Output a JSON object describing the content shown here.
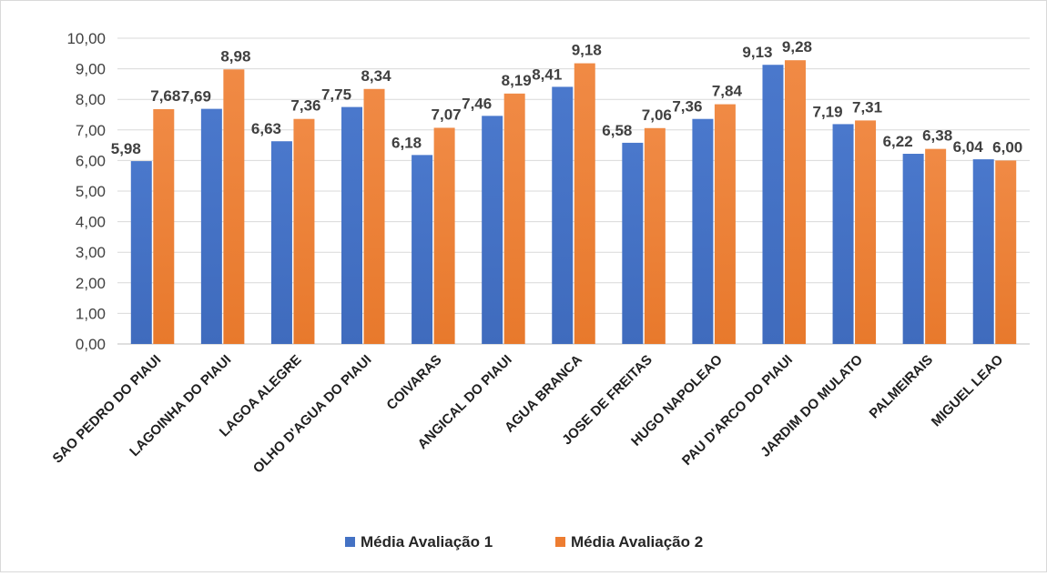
{
  "chart_data": {
    "type": "bar",
    "categories": [
      "SAO PEDRO DO PIAUI",
      "LAGOINHA DO PIAUI",
      "LAGOA ALEGRE",
      "OLHO D'AGUA DO PIAUI",
      "COIVARAS",
      "ANGICAL DO PIAUI",
      "AGUA BRANCA",
      "JOSE DE FREITAS",
      "HUGO NAPOLEAO",
      "PAU D'ARCO DO PIAUI",
      "JARDIM DO MULATO",
      "PALMEIRAIS",
      "MIGUEL LEAO"
    ],
    "series": [
      {
        "name": "Média Avaliação 1",
        "color": "#4472c4",
        "values": [
          5.98,
          7.69,
          6.63,
          7.75,
          6.18,
          7.46,
          8.41,
          6.58,
          7.36,
          9.13,
          7.19,
          6.22,
          6.04
        ],
        "labels": [
          "5,98",
          "7,69",
          "6,63",
          "7,75",
          "6,18",
          "7,46",
          "8,41",
          "6,58",
          "7,36",
          "9,13",
          "7,19",
          "6,22",
          "6,04"
        ]
      },
      {
        "name": "Média Avaliação 2",
        "color": "#ed7d31",
        "values": [
          7.68,
          8.98,
          7.36,
          8.34,
          7.07,
          8.19,
          9.18,
          7.06,
          7.84,
          9.28,
          7.31,
          6.38,
          6.0
        ],
        "labels": [
          "7,68",
          "8,98",
          "7,36",
          "8,34",
          "7,07",
          "8,19",
          "9,18",
          "7,06",
          "7,84",
          "9,28",
          "7,31",
          "6,38",
          "6,00"
        ]
      }
    ],
    "y_ticks": [
      "0,00",
      "1,00",
      "2,00",
      "3,00",
      "4,00",
      "5,00",
      "6,00",
      "7,00",
      "8,00",
      "9,00",
      "10,00"
    ],
    "ylim": [
      0,
      10
    ],
    "grid": true,
    "legend_position": "bottom"
  }
}
